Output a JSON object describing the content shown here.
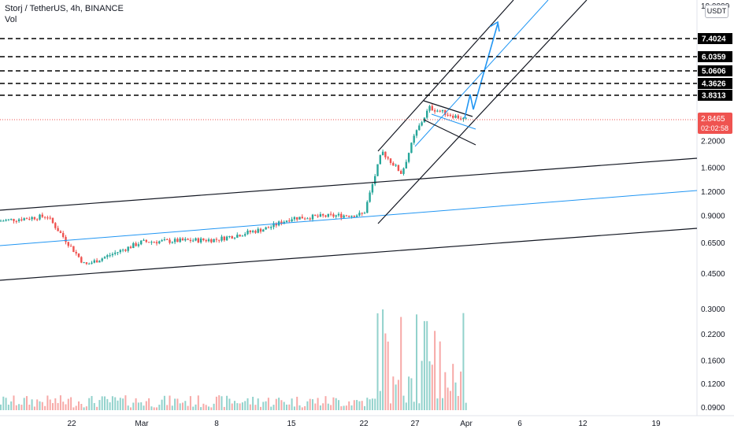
{
  "header": {
    "title": "Storj / TetherUS, 4h, BINANCE",
    "vol_label": "Vol"
  },
  "currency_badge": "USDT",
  "colors": {
    "up": "#26a69a",
    "down": "#ef5350",
    "channel_black": "#131722",
    "channel_blue": "#2196f3",
    "price_line": "#ef5350"
  },
  "chart_data": {
    "type": "candlestick",
    "y_scale": "log",
    "price_axis_ticks": [
      "10.0000",
      "2.2000",
      "1.6000",
      "1.2000",
      "0.9000",
      "0.6500",
      "0.4500"
    ],
    "volume_axis_ticks": [
      "0.3000",
      "0.2200",
      "0.1600",
      "0.1200",
      "0.0900"
    ],
    "x_tick_labels": [
      "22",
      "Mar",
      "8",
      "15",
      "22",
      "27",
      "Apr",
      "6",
      "12",
      "19"
    ],
    "resistance_levels": [
      "7.4024",
      "6.0359",
      "5.0606",
      "4.3626",
      "3.8313"
    ],
    "current_price": "2.8465",
    "countdown": "02:02:58",
    "approx_series": {
      "note_free": true,
      "points": [
        {
          "x": "Feb 14",
          "close": 0.85
        },
        {
          "x": "Feb 20",
          "close": 0.9
        },
        {
          "x": "Feb 22",
          "close": 0.5
        },
        {
          "x": "Mar 1",
          "close": 0.66
        },
        {
          "x": "Mar 8",
          "close": 0.68
        },
        {
          "x": "Mar 13",
          "close": 0.78
        },
        {
          "x": "Mar 15",
          "close": 0.88
        },
        {
          "x": "Mar 22",
          "close": 0.92
        },
        {
          "x": "Mar 23",
          "close": 1.95
        },
        {
          "x": "Mar 25",
          "close": 1.5
        },
        {
          "x": "Mar 27",
          "close": 2.4
        },
        {
          "x": "Mar 28",
          "close": 3.3
        },
        {
          "x": "Mar 31",
          "close": 2.85
        }
      ]
    }
  }
}
